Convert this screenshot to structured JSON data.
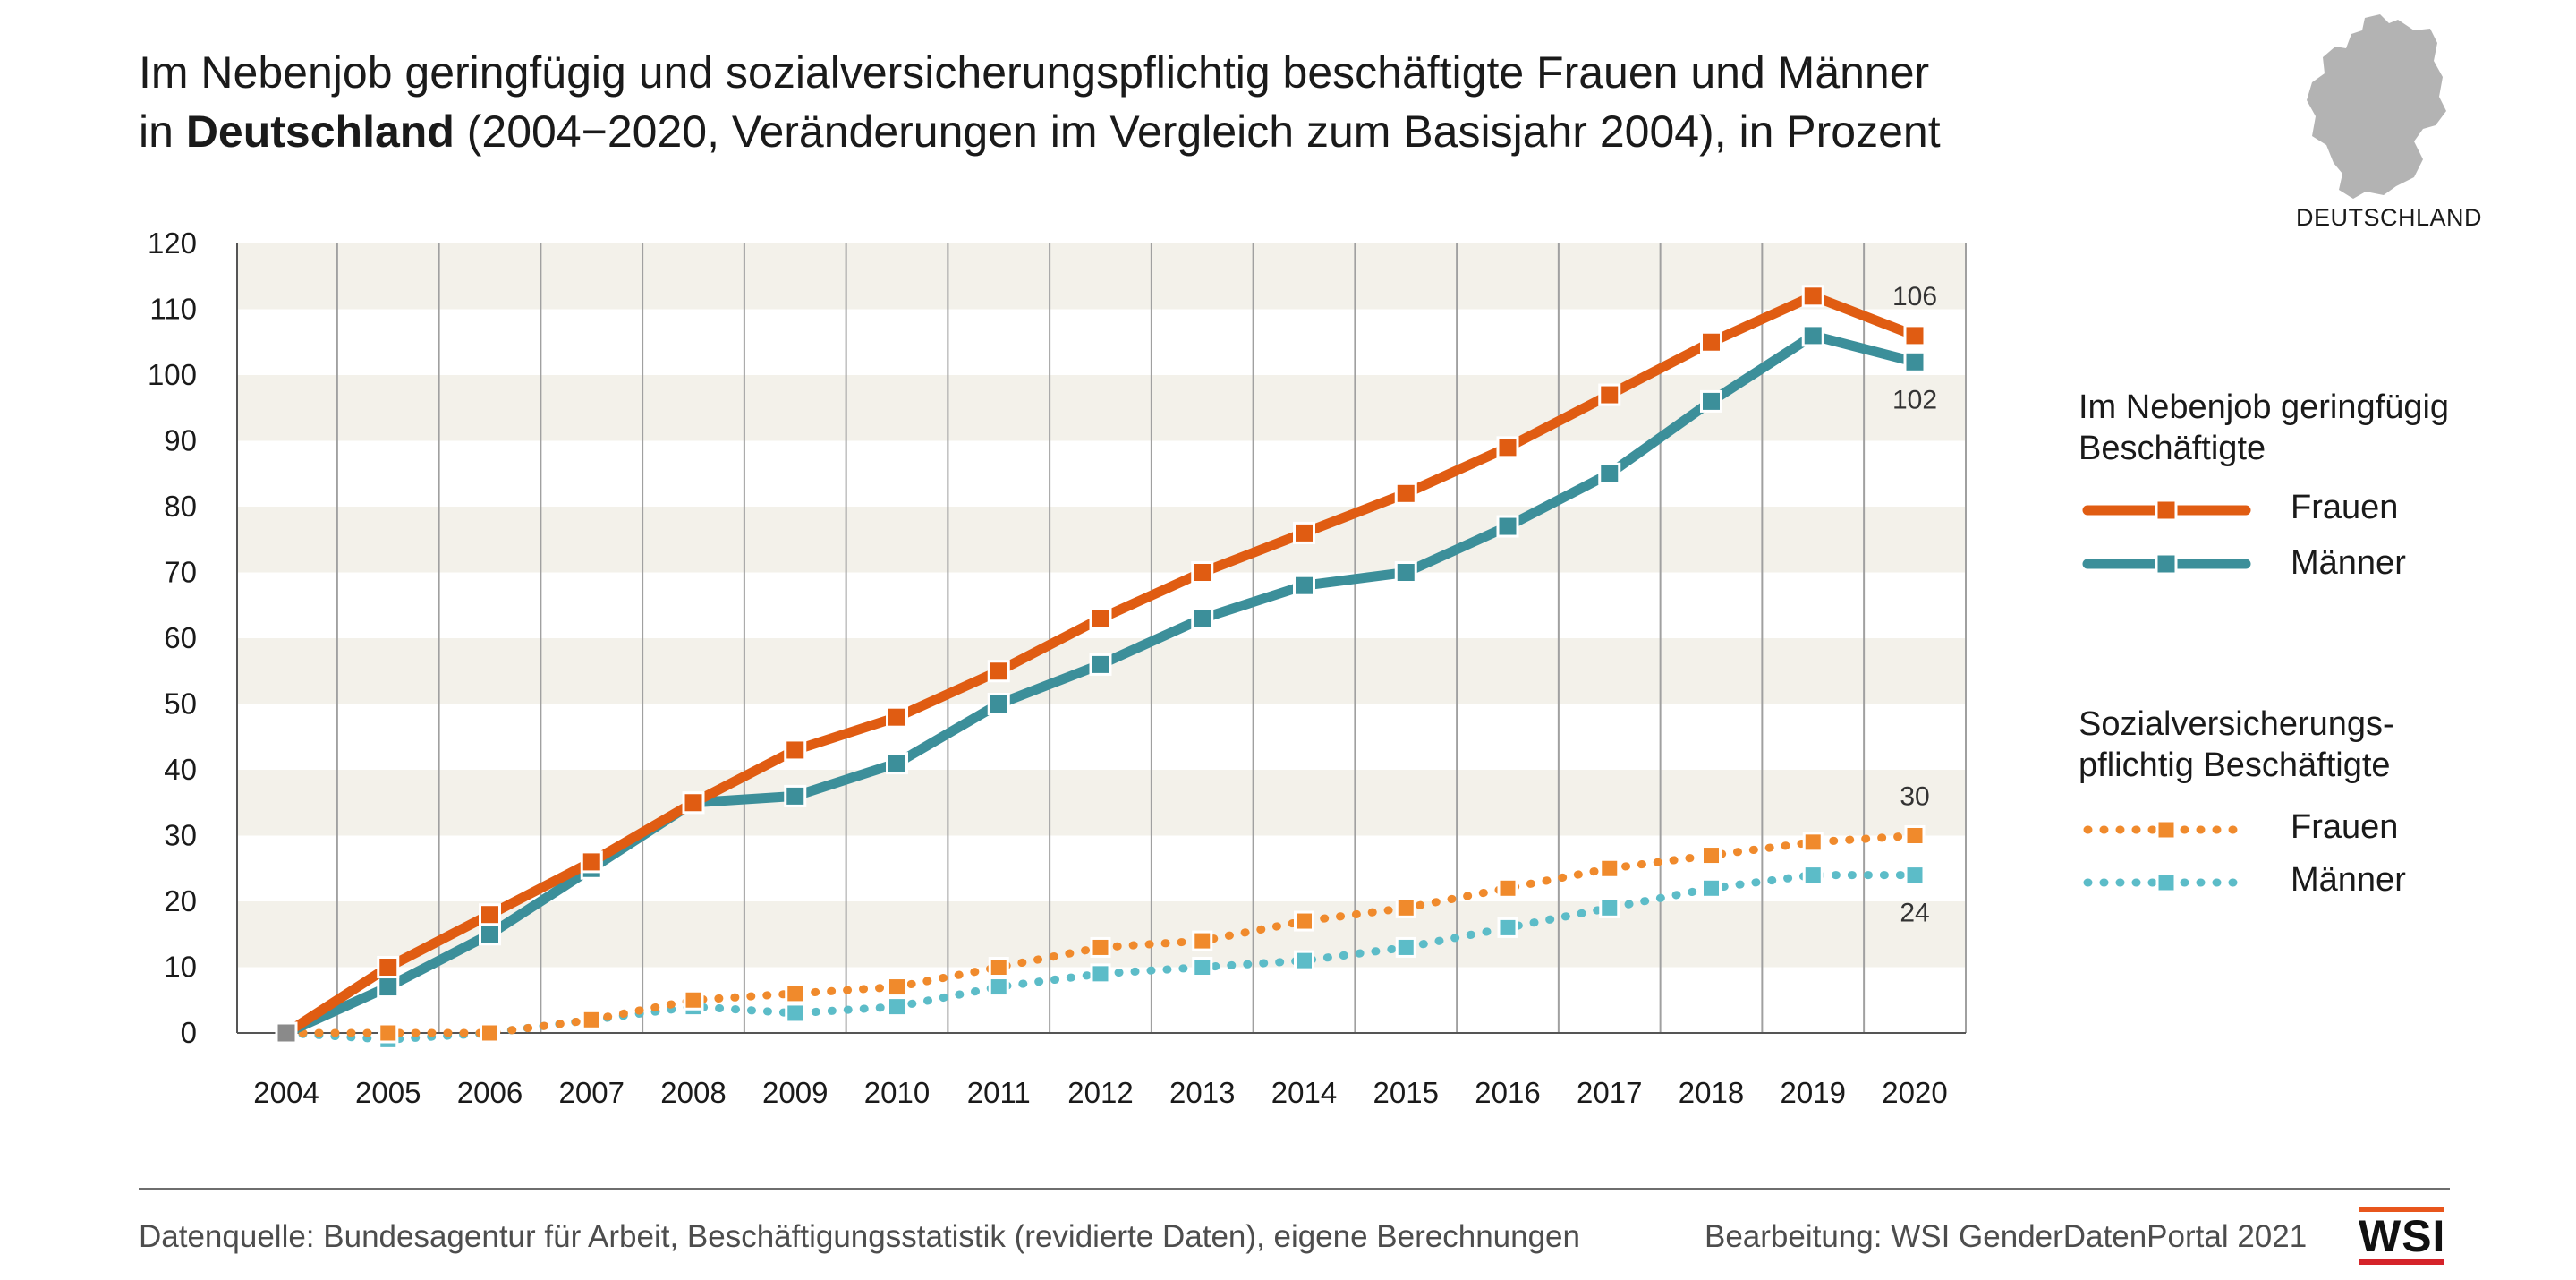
{
  "title": {
    "line1": "Im Nebenjob geringfügig und sozialversicherungspflichtig beschäftigte Frauen und Männer",
    "line2_prefix": "in ",
    "line2_bold": "Deutschland",
    "line2_suffix": " (2004−2020, Veränderungen im Vergleich zum Basisjahr 2004), in Prozent"
  },
  "map_label": "DEUTSCHLAND",
  "legend": {
    "group1_title": "Im Nebenjob geringfügig Beschäftigte",
    "group1_title_l1": "Im Nebenjob geringfügig",
    "group1_title_l2": "Beschäftigte",
    "group1_frauen": "Frauen",
    "group1_maenner": "Männer",
    "group2_title_l1": "Sozialversicherungs-",
    "group2_title_l2": "pflichtig Beschäftigte",
    "group2_frauen": "Frauen",
    "group2_maenner": "Männer"
  },
  "footer": {
    "source": "Datenquelle: Bundesagentur für Arbeit, Beschäftigungsstatistik (revidierte Daten), eigene Berechnungen",
    "credit": "Bearbeitung: WSI GenderDatenPortal 2021",
    "logo": "WSI"
  },
  "colors": {
    "orange_dark": "#e05c12",
    "teal_dark": "#3c8f9a",
    "orange_light": "#f08a2c",
    "teal_light": "#5cbcc8",
    "base_marker": "#8a8a8a",
    "band": "#f3f1ea",
    "grid": "#a0a0a0"
  },
  "chart_data": {
    "type": "line",
    "x": [
      2004,
      2005,
      2006,
      2007,
      2008,
      2009,
      2010,
      2011,
      2012,
      2013,
      2014,
      2015,
      2016,
      2017,
      2018,
      2019,
      2020
    ],
    "ylim": [
      0,
      120
    ],
    "yticks": [
      0,
      10,
      20,
      30,
      40,
      50,
      60,
      70,
      80,
      90,
      100,
      110,
      120
    ],
    "series": [
      {
        "name": "Frauen",
        "group": "Im Nebenjob geringfügig Beschäftigte",
        "style": "solid",
        "values": [
          0,
          10,
          18,
          26,
          35,
          43,
          48,
          55,
          63,
          70,
          76,
          82,
          89,
          97,
          105,
          112,
          106
        ],
        "end_label": "106"
      },
      {
        "name": "Männer",
        "group": "Im Nebenjob geringfügig Beschäftigte",
        "style": "solid",
        "values": [
          0,
          7,
          15,
          25,
          35,
          36,
          41,
          50,
          56,
          63,
          68,
          70,
          77,
          85,
          96,
          106,
          102
        ],
        "end_label": "102"
      },
      {
        "name": "Frauen",
        "group": "Sozialversicherungspflichtig Beschäftigte",
        "style": "dotted",
        "values": [
          0,
          0,
          0,
          2,
          5,
          6,
          7,
          10,
          13,
          14,
          17,
          19,
          22,
          25,
          27,
          29,
          30
        ],
        "end_label": "30"
      },
      {
        "name": "Männer",
        "group": "Sozialversicherungspflichtig Beschäftigte",
        "style": "dotted",
        "values": [
          0,
          -1,
          0,
          2,
          4,
          3,
          4,
          7,
          9,
          10,
          11,
          13,
          16,
          19,
          22,
          24,
          24
        ],
        "end_label": "24"
      }
    ]
  }
}
